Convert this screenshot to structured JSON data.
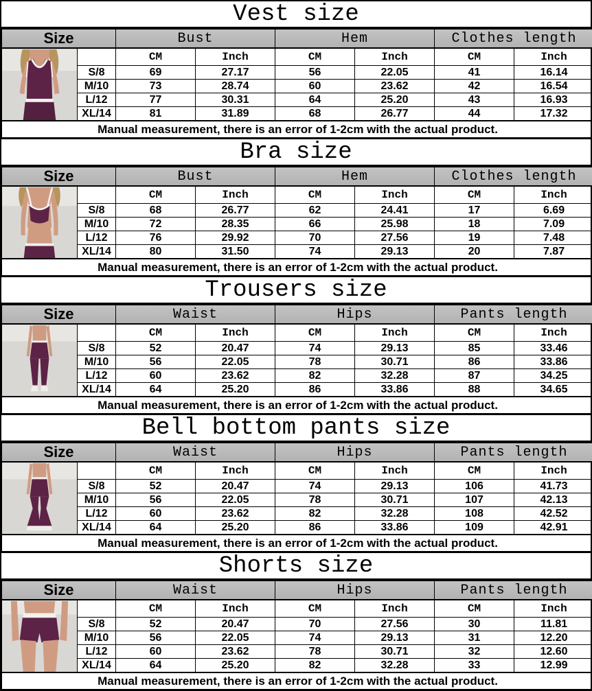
{
  "size_column_header": "Size",
  "units": {
    "cm": "CM",
    "inch": "Inch"
  },
  "measurement_note": "Manual measurement, there is an error of 1-2cm with the actual product.",
  "colors": {
    "header_bg": "#b9b9b9",
    "border": "#000000",
    "photo_bg": "#d9d7d4",
    "photo_bg_light": "#e8e6e3",
    "garment_plum": "#5c2346",
    "garment_plum_dark": "#542040",
    "trim_white": "#f3f1ed",
    "skin": "#cf9c82",
    "hair_blonde": "#b6955e",
    "shoe_white": "#efede8"
  },
  "tables": [
    {
      "title": "Vest size",
      "photo_icon": "vest-product-photo",
      "columns": [
        "Bust",
        "Hem",
        "Clothes length"
      ],
      "rows": [
        {
          "label": "S/8",
          "values": [
            "69",
            "27.17",
            "56",
            "22.05",
            "41",
            "16.14"
          ]
        },
        {
          "label": "M/10",
          "values": [
            "73",
            "28.74",
            "60",
            "23.62",
            "42",
            "16.54"
          ]
        },
        {
          "label": "L/12",
          "values": [
            "77",
            "30.31",
            "64",
            "25.20",
            "43",
            "16.93"
          ]
        },
        {
          "label": "XL/14",
          "values": [
            "81",
            "31.89",
            "68",
            "26.77",
            "44",
            "17.32"
          ]
        }
      ]
    },
    {
      "title": "Bra size",
      "photo_icon": "bra-product-photo",
      "columns": [
        "Bust",
        "Hem",
        "Clothes length"
      ],
      "rows": [
        {
          "label": "S/8",
          "values": [
            "68",
            "26.77",
            "62",
            "24.41",
            "17",
            "6.69"
          ]
        },
        {
          "label": "M/10",
          "values": [
            "72",
            "28.35",
            "66",
            "25.98",
            "18",
            "7.09"
          ]
        },
        {
          "label": "L/12",
          "values": [
            "76",
            "29.92",
            "70",
            "27.56",
            "19",
            "7.48"
          ]
        },
        {
          "label": "XL/14",
          "values": [
            "80",
            "31.50",
            "74",
            "29.13",
            "20",
            "7.87"
          ]
        }
      ]
    },
    {
      "title": "Trousers size",
      "photo_icon": "leggings-product-photo",
      "columns": [
        "Waist",
        "Hips",
        "Pants length"
      ],
      "rows": [
        {
          "label": "S/8",
          "values": [
            "52",
            "20.47",
            "74",
            "29.13",
            "85",
            "33.46"
          ]
        },
        {
          "label": "M/10",
          "values": [
            "56",
            "22.05",
            "78",
            "30.71",
            "86",
            "33.86"
          ]
        },
        {
          "label": "L/12",
          "values": [
            "60",
            "23.62",
            "82",
            "32.28",
            "87",
            "34.25"
          ]
        },
        {
          "label": "XL/14",
          "values": [
            "64",
            "25.20",
            "86",
            "33.86",
            "88",
            "34.65"
          ]
        }
      ]
    },
    {
      "title": "Bell bottom pants size",
      "photo_icon": "flare-pants-product-photo",
      "columns": [
        "Waist",
        "Hips",
        "Pants length"
      ],
      "rows": [
        {
          "label": "S/8",
          "values": [
            "52",
            "20.47",
            "74",
            "29.13",
            "106",
            "41.73"
          ]
        },
        {
          "label": "M/10",
          "values": [
            "56",
            "22.05",
            "78",
            "30.71",
            "107",
            "42.13"
          ]
        },
        {
          "label": "L/12",
          "values": [
            "60",
            "23.62",
            "82",
            "32.28",
            "108",
            "42.52"
          ]
        },
        {
          "label": "XL/14",
          "values": [
            "64",
            "25.20",
            "86",
            "33.86",
            "109",
            "42.91"
          ]
        }
      ]
    },
    {
      "title": "Shorts size",
      "photo_icon": "shorts-product-photo",
      "columns": [
        "Waist",
        "Hips",
        "Pants length"
      ],
      "rows": [
        {
          "label": "S/8",
          "values": [
            "52",
            "20.47",
            "70",
            "27.56",
            "30",
            "11.81"
          ]
        },
        {
          "label": "M/10",
          "values": [
            "56",
            "22.05",
            "74",
            "29.13",
            "31",
            "12.20"
          ]
        },
        {
          "label": "L/12",
          "values": [
            "60",
            "23.62",
            "78",
            "30.71",
            "32",
            "12.60"
          ]
        },
        {
          "label": "XL/14",
          "values": [
            "64",
            "25.20",
            "82",
            "32.28",
            "33",
            "12.99"
          ]
        }
      ]
    }
  ]
}
